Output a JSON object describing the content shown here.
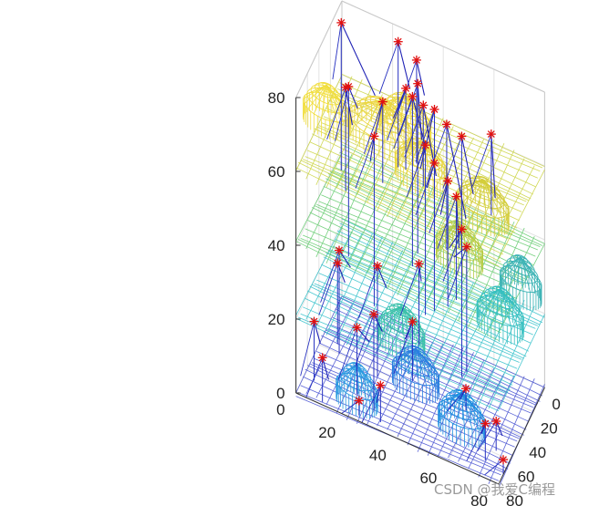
{
  "chart_data": {
    "type": "3d-mesh-scatter",
    "title": "",
    "xlabel": "",
    "ylabel": "",
    "zlabel": "",
    "xlim": [
      0,
      80
    ],
    "ylim": [
      0,
      80
    ],
    "zlim": [
      0,
      80
    ],
    "x_ticks": [
      "0",
      "20",
      "40",
      "60",
      "80"
    ],
    "y_ticks": [
      "0",
      "20",
      "40",
      "60",
      "80"
    ],
    "z_ticks": [
      "0",
      "20",
      "40",
      "60",
      "80"
    ],
    "grid": true,
    "colormap": [
      "#3d35b6",
      "#1a79d9",
      "#1fb0b0",
      "#72c364",
      "#d8c82f",
      "#f5e23a"
    ],
    "mesh_layers": [
      {
        "z": 0,
        "color": "#3f4ad0"
      },
      {
        "z": 20,
        "color": "#2bbec8"
      },
      {
        "z": 40,
        "color": "#5fc96a"
      },
      {
        "z": 60,
        "color": "#c9d23a"
      }
    ],
    "domes": [
      {
        "cx": 62,
        "cy": 8,
        "z_top": 80,
        "r": 9,
        "color": "#f1de3f"
      },
      {
        "cx": 56,
        "cy": 28,
        "z_top": 80,
        "r": 12,
        "color": "#ecd63f"
      },
      {
        "cx": 40,
        "cy": 34,
        "z_top": 78,
        "r": 10,
        "color": "#eed83e"
      },
      {
        "cx": 56,
        "cy": 44,
        "z_top": 74,
        "r": 10,
        "color": "#e9d63e"
      },
      {
        "cx": 28,
        "cy": 62,
        "z_top": 60,
        "r": 10,
        "color": "#d4cd3a"
      },
      {
        "cx": 60,
        "cy": 60,
        "z_top": 58,
        "r": 9,
        "color": "#b7cc45"
      },
      {
        "cx": 24,
        "cy": 76,
        "z_top": 42,
        "r": 8,
        "color": "#3cb3b5"
      },
      {
        "cx": 42,
        "cy": 72,
        "z_top": 38,
        "r": 9,
        "color": "#37c0c0"
      },
      {
        "cx": 64,
        "cy": 38,
        "z_top": 30,
        "r": 9,
        "color": "#39c0a8"
      },
      {
        "cx": 74,
        "cy": 64,
        "z_top": 18,
        "r": 9,
        "color": "#1e8fe0"
      },
      {
        "cx": 48,
        "cy": 40,
        "z_top": 14,
        "r": 9,
        "color": "#2a7fe0"
      },
      {
        "cx": 62,
        "cy": 20,
        "z_top": 8,
        "r": 8,
        "color": "#2a9ae0"
      }
    ],
    "points": [
      {
        "x": 40,
        "y": 68,
        "z": 78,
        "sx": 42,
        "sy": 70,
        "sz": 62
      },
      {
        "x": 43,
        "y": 57,
        "z": 75,
        "sx": 36,
        "sy": 60,
        "sz": 58
      },
      {
        "x": 47,
        "y": 52,
        "z": 78,
        "sx": 40,
        "sy": 58,
        "sz": 52
      },
      {
        "x": 33,
        "y": 44,
        "z": 75,
        "sx": 40,
        "sy": 40,
        "sz": 60
      },
      {
        "x": 36,
        "y": 36,
        "z": 77,
        "sx": 30,
        "sy": 40,
        "sz": 62
      },
      {
        "x": 30,
        "y": 32,
        "z": 76,
        "sx": 34,
        "sy": 28,
        "sz": 68
      },
      {
        "x": 20,
        "y": 34,
        "z": 81,
        "sx": 24,
        "sy": 38,
        "sz": 74
      },
      {
        "x": 8,
        "y": 24,
        "z": 79,
        "sx": 14,
        "sy": 30,
        "sz": 70
      },
      {
        "x": 10,
        "y": 2,
        "z": 78,
        "sx": 4,
        "sy": 14,
        "sz": 60
      },
      {
        "x": 18,
        "y": 34,
        "z": 74,
        "sx": 20,
        "sy": 36,
        "sz": 60
      },
      {
        "x": 26,
        "y": 38,
        "z": 72,
        "sx": 30,
        "sy": 44,
        "sz": 56
      },
      {
        "x": 48,
        "y": 56,
        "z": 60,
        "sx": 52,
        "sy": 58,
        "sz": 48
      },
      {
        "x": 45,
        "y": 52,
        "z": 62,
        "sx": 40,
        "sy": 48,
        "sz": 50
      },
      {
        "x": 42,
        "y": 46,
        "z": 64,
        "sx": 46,
        "sy": 44,
        "sz": 58
      },
      {
        "x": 40,
        "y": 42,
        "z": 67,
        "sx": 46,
        "sy": 40,
        "sz": 62
      },
      {
        "x": 26,
        "y": 22,
        "z": 68,
        "sx": 30,
        "sy": 20,
        "sz": 60
      },
      {
        "x": 20,
        "y": 6,
        "z": 65,
        "sx": 26,
        "sy": 10,
        "sz": 58
      },
      {
        "x": 74,
        "y": 66,
        "z": 58,
        "sx": 70,
        "sy": 60,
        "sz": 52
      },
      {
        "x": 56,
        "y": 60,
        "z": 55,
        "sx": 60,
        "sy": 56,
        "sz": 50
      },
      {
        "x": 32,
        "y": 20,
        "z": 60,
        "sx": 30,
        "sy": 18,
        "sz": 52
      },
      {
        "x": 60,
        "y": 44,
        "z": 42,
        "sx": 56,
        "sy": 44,
        "sz": 36
      },
      {
        "x": 68,
        "y": 28,
        "z": 26,
        "sx": 62,
        "sy": 30,
        "sz": 20
      },
      {
        "x": 62,
        "y": 20,
        "z": 18,
        "sx": 58,
        "sy": 24,
        "sz": 14
      },
      {
        "x": 44,
        "y": 24,
        "z": 30,
        "sx": 46,
        "sy": 28,
        "sz": 26
      },
      {
        "x": 40,
        "y": 8,
        "z": 28,
        "sx": 38,
        "sy": 12,
        "sz": 24
      },
      {
        "x": 34,
        "y": 6,
        "z": 22,
        "sx": 30,
        "sy": 8,
        "sz": 16
      },
      {
        "x": 36,
        "y": 36,
        "z": 16,
        "sx": 40,
        "sy": 34,
        "sz": 12
      },
      {
        "x": 68,
        "y": 72,
        "z": 10,
        "sx": 66,
        "sy": 70,
        "sz": 6
      },
      {
        "x": 58,
        "y": 74,
        "z": 8,
        "sx": 56,
        "sy": 76,
        "sz": 4
      },
      {
        "x": 74,
        "y": 32,
        "z": 10,
        "sx": 72,
        "sy": 30,
        "sz": 4
      },
      {
        "x": 76,
        "y": 24,
        "z": 4,
        "sx": 74,
        "sy": 22,
        "sz": 2
      },
      {
        "x": 40,
        "y": 58,
        "z": 6,
        "sx": 42,
        "sy": 56,
        "sz": 3
      },
      {
        "x": 78,
        "y": 10,
        "z": 12,
        "sx": 76,
        "sy": 12,
        "sz": 6
      },
      {
        "x": 66,
        "y": 4,
        "z": 16,
        "sx": 64,
        "sy": 6,
        "sz": 10
      },
      {
        "x": 6,
        "y": 4,
        "z": 60,
        "sx": 8,
        "sy": 8,
        "sz": 56
      },
      {
        "x": 72,
        "y": 80,
        "z": 4,
        "sx": 70,
        "sy": 78,
        "sz": 2
      }
    ]
  },
  "watermark": "CSDN @我爱C编程"
}
